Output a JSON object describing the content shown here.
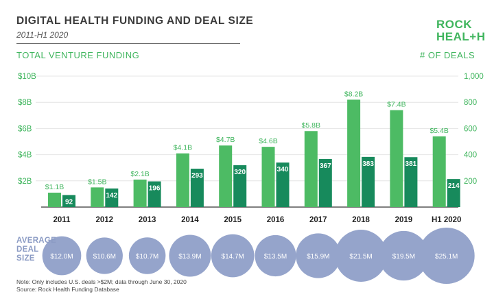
{
  "chart_data": {
    "type": "bar",
    "title": "DIGITAL HEALTH FUNDING AND DEAL SIZE",
    "subtitle": "2011-H1 2020",
    "categories": [
      "2011",
      "2012",
      "2013",
      "2014",
      "2015",
      "2016",
      "2017",
      "2018",
      "2019",
      "H1 2020"
    ],
    "series": [
      {
        "name": "TOTAL VENTURE FUNDING",
        "axis": "left",
        "unit": "$B",
        "color": "#4dbb64",
        "values": [
          1.1,
          1.5,
          2.1,
          4.1,
          4.7,
          4.6,
          5.8,
          8.2,
          7.4,
          5.4
        ],
        "labels": [
          "$1.1B",
          "$1.5B",
          "$2.1B",
          "$4.1B",
          "$4.7B",
          "$4.6B",
          "$5.8B",
          "$8.2B",
          "$7.4B",
          "$5.4B"
        ]
      },
      {
        "name": "# OF DEALS",
        "axis": "right",
        "color": "#178a5c",
        "values": [
          92,
          142,
          196,
          293,
          320,
          340,
          367,
          383,
          381,
          214
        ],
        "labels": [
          "92",
          "142",
          "196",
          "293",
          "320",
          "340",
          "367",
          "383",
          "381",
          "214"
        ]
      }
    ],
    "left_axis": {
      "label": "TOTAL VENTURE FUNDING",
      "ylim": [
        0,
        10
      ],
      "ticks": [
        2,
        4,
        6,
        8,
        10
      ],
      "tick_labels": [
        "$2B",
        "$4B",
        "$6B",
        "$8B",
        "$10B"
      ]
    },
    "right_axis": {
      "label": "# OF DEALS",
      "ylim": [
        0,
        1000
      ],
      "ticks": [
        200,
        400,
        600,
        800,
        1000
      ],
      "tick_labels": [
        "200",
        "400",
        "600",
        "800",
        "1,000"
      ]
    },
    "bubbles": {
      "label": [
        "AVERAGE",
        "DEAL",
        "SIZE"
      ],
      "color": "#95a4cb",
      "values": [
        12.0,
        10.6,
        10.7,
        13.9,
        14.7,
        13.5,
        15.9,
        21.5,
        19.5,
        25.1
      ],
      "labels": [
        "$12.0M",
        "$10.6M",
        "$10.7M",
        "$13.9M",
        "$14.7M",
        "$13.5M",
        "$15.9M",
        "$21.5M",
        "$19.5M",
        "$25.1M"
      ]
    }
  },
  "logo": {
    "line1": "ROCK",
    "line2": "HEAL+H"
  },
  "notes": [
    "Note: Only includes U.S. deals >$2M; data through June 30, 2020",
    "Source: Rock Health Funding Database"
  ],
  "colors": {
    "accent_green": "#3fb55d",
    "funding_bar": "#4dbb64",
    "deals_bar": "#178a5c",
    "bubble": "#95a4cb"
  }
}
